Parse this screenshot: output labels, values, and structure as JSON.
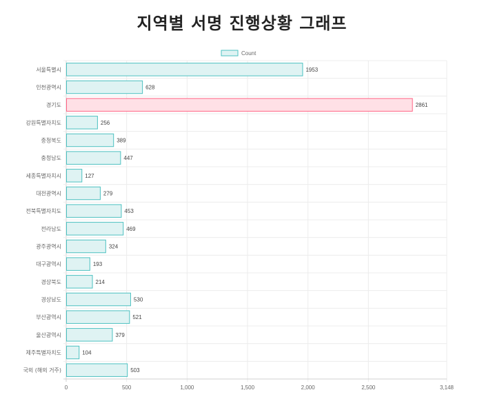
{
  "title": "지역별 서명 진행상황 그래프",
  "chart_data": {
    "type": "bar",
    "orientation": "horizontal",
    "title": "지역별 서명 진행상황 그래프",
    "legend": {
      "label": "Count",
      "position": "top"
    },
    "categories": [
      "서울특별시",
      "인천광역시",
      "경기도",
      "강원특별자치도",
      "충청북도",
      "충청남도",
      "세종특별자치시",
      "대전광역시",
      "전북특별자치도",
      "전라남도",
      "광주광역시",
      "대구광역시",
      "경상북도",
      "경상남도",
      "부산광역시",
      "울산광역시",
      "제주특별자치도",
      "국외 (해외 거주)"
    ],
    "series": [
      {
        "name": "Count",
        "values": [
          1953,
          628,
          2861,
          256,
          389,
          447,
          127,
          279,
          453,
          469,
          324,
          193,
          214,
          530,
          521,
          379,
          104,
          503
        ]
      }
    ],
    "highlight_index": 2,
    "xlim": [
      0,
      3148
    ],
    "xticks": [
      "0",
      "500",
      "1,000",
      "1,500",
      "2,000",
      "2,500",
      "3,148"
    ],
    "xtick_values": [
      0,
      500,
      1000,
      1500,
      2000,
      2500,
      3148
    ],
    "grid": true,
    "colors": {
      "bar_fill": "#dff3f3",
      "bar_stroke": "#4bc0c0",
      "highlight_fill": "#ffe0e6",
      "highlight_stroke": "#ff6384",
      "grid": "#ececec",
      "axis": "#d0d0d0"
    }
  }
}
